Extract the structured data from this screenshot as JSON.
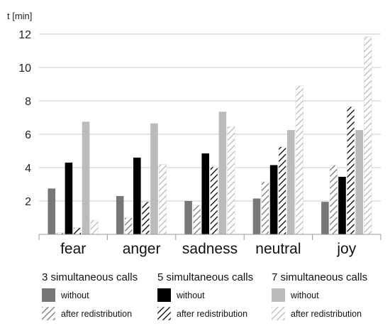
{
  "chart_data": {
    "type": "bar",
    "ylabel": "t [min]",
    "ylim": [
      0,
      12
    ],
    "yticks": [
      2,
      4,
      6,
      8,
      10,
      12
    ],
    "categories": [
      "fear",
      "anger",
      "sadness",
      "neutral",
      "joy"
    ],
    "groups": [
      "3 simultaneous calls",
      "5 simultaneous calls",
      "7 simultaneous calls"
    ],
    "series": [
      {
        "name": "without",
        "group": "3 simultaneous calls",
        "fill": "solid",
        "color": "#777777",
        "values": [
          2.75,
          2.3,
          2.0,
          2.15,
          1.95
        ]
      },
      {
        "name": "after redistribution",
        "group": "3 simultaneous calls",
        "fill": "hatch",
        "color": "#777777",
        "values": [
          0.1,
          1.0,
          1.75,
          3.15,
          4.15
        ]
      },
      {
        "name": "without",
        "group": "5 simultaneous calls",
        "fill": "solid",
        "color": "#000000",
        "values": [
          4.3,
          4.6,
          4.85,
          4.15,
          3.45
        ]
      },
      {
        "name": "after redistribution",
        "group": "5 simultaneous calls",
        "fill": "hatch",
        "color": "#000000",
        "values": [
          0.4,
          1.95,
          4.05,
          5.25,
          7.65
        ]
      },
      {
        "name": "without",
        "group": "7 simultaneous calls",
        "fill": "solid",
        "color": "#bbbbbb",
        "values": [
          6.75,
          6.65,
          7.35,
          6.25,
          6.25
        ]
      },
      {
        "name": "after redistribution",
        "group": "7 simultaneous calls",
        "fill": "hatch",
        "color": "#bbbbbb",
        "values": [
          0.85,
          4.2,
          6.45,
          8.9,
          11.85
        ]
      }
    ],
    "grid": true,
    "legend_position": "bottom"
  },
  "legend": {
    "groups": [
      {
        "title": "3 simultaneous calls",
        "items": [
          "without",
          "after redistribution"
        ]
      },
      {
        "title": "5 simultaneous calls",
        "items": [
          "without",
          "after redistribution"
        ]
      },
      {
        "title": "7 simultaneous calls",
        "items": [
          "without",
          "after redistribution"
        ]
      }
    ]
  }
}
